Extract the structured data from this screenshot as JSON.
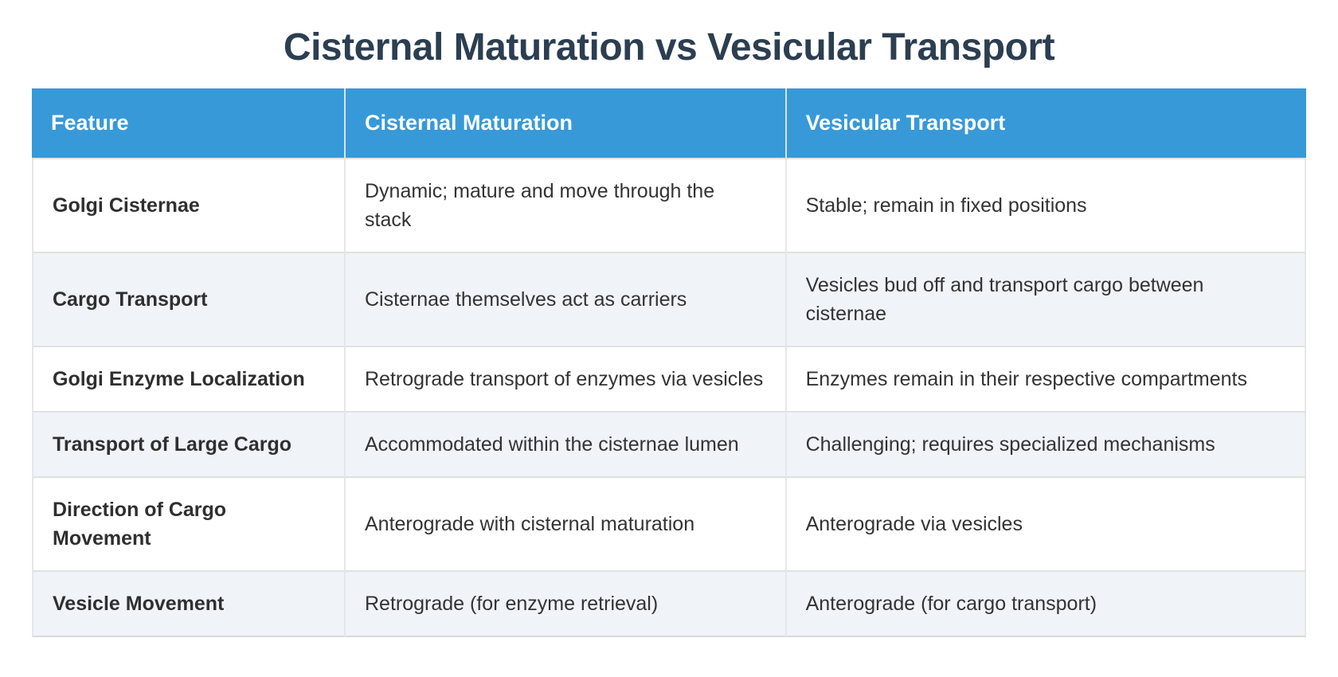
{
  "title": "Cisternal Maturation vs Vesicular Transport",
  "table": {
    "columns": [
      "Feature",
      "Cisternal Maturation",
      "Vesicular Transport"
    ],
    "rows": [
      {
        "feature": "Golgi Cisternae",
        "cisternal": "Dynamic; mature and move through the stack",
        "vesicular": "Stable; remain in fixed positions"
      },
      {
        "feature": "Cargo Transport",
        "cisternal": "Cisternae themselves act as carriers",
        "vesicular": "Vesicles bud off and transport cargo between cisternae"
      },
      {
        "feature": "Golgi Enzyme Localization",
        "cisternal": "Retrograde transport of enzymes via vesicles",
        "vesicular": "Enzymes remain in their respective compartments"
      },
      {
        "feature": "Transport of Large Cargo",
        "cisternal": "Accommodated within the cisternae lumen",
        "vesicular": "Challenging; requires specialized mechanisms"
      },
      {
        "feature": "Direction of Cargo Movement",
        "cisternal": "Anterograde with cisternal maturation",
        "vesicular": "Anterograde via vesicles"
      },
      {
        "feature": "Vesicle Movement",
        "cisternal": "Retrograde (for enzyme retrieval)",
        "vesicular": "Anterograde (for cargo transport)"
      }
    ]
  },
  "colors": {
    "header_bg": "#3799d8",
    "header_text": "#ffffff",
    "title_text": "#2c3e50",
    "alt_row_bg": "#f0f3f8",
    "border": "#e0e0e0",
    "body_text": "#333333"
  }
}
